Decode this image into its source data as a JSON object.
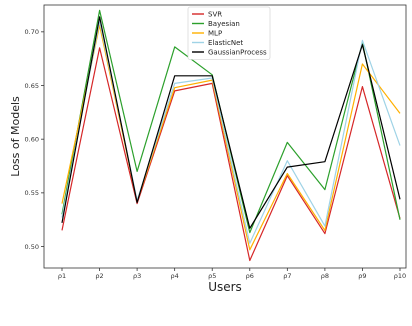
{
  "chart_data": {
    "type": "line",
    "title": "",
    "xlabel": "Users",
    "ylabel": "Loss of Models",
    "categories": [
      "ρ1",
      "ρ2",
      "ρ3",
      "ρ4",
      "ρ5",
      "ρ6",
      "ρ7",
      "ρ8",
      "ρ9",
      "ρ10"
    ],
    "ylim": [
      0.48,
      0.725
    ],
    "yticks": [
      0.5,
      0.55,
      0.6,
      0.65,
      0.7
    ],
    "ytick_labels": [
      "0.50",
      "0.55",
      "0.60",
      "0.65",
      "0.70"
    ],
    "grid": false,
    "legend_position": "top-center",
    "series": [
      {
        "name": "SVR",
        "color": "#d62728",
        "values": [
          0.515,
          0.685,
          0.54,
          0.645,
          0.652,
          0.487,
          0.566,
          0.512,
          0.649,
          0.526
        ]
      },
      {
        "name": "Bayesian",
        "color": "#2ca02c",
        "values": [
          0.53,
          0.72,
          0.57,
          0.686,
          0.66,
          0.513,
          0.597,
          0.553,
          0.69,
          0.525
        ]
      },
      {
        "name": "MLP",
        "color": "#ffb000",
        "values": [
          0.54,
          0.706,
          0.542,
          0.648,
          0.655,
          0.497,
          0.568,
          0.515,
          0.67,
          0.624
        ]
      },
      {
        "name": "ElasticNet",
        "color": "#9fd3e6",
        "values": [
          0.527,
          0.71,
          0.543,
          0.652,
          0.657,
          0.503,
          0.58,
          0.519,
          0.692,
          0.594
        ]
      },
      {
        "name": "GaussianProcess",
        "color": "#000000",
        "values": [
          0.522,
          0.714,
          0.541,
          0.659,
          0.659,
          0.517,
          0.574,
          0.579,
          0.688,
          0.544
        ]
      }
    ]
  }
}
